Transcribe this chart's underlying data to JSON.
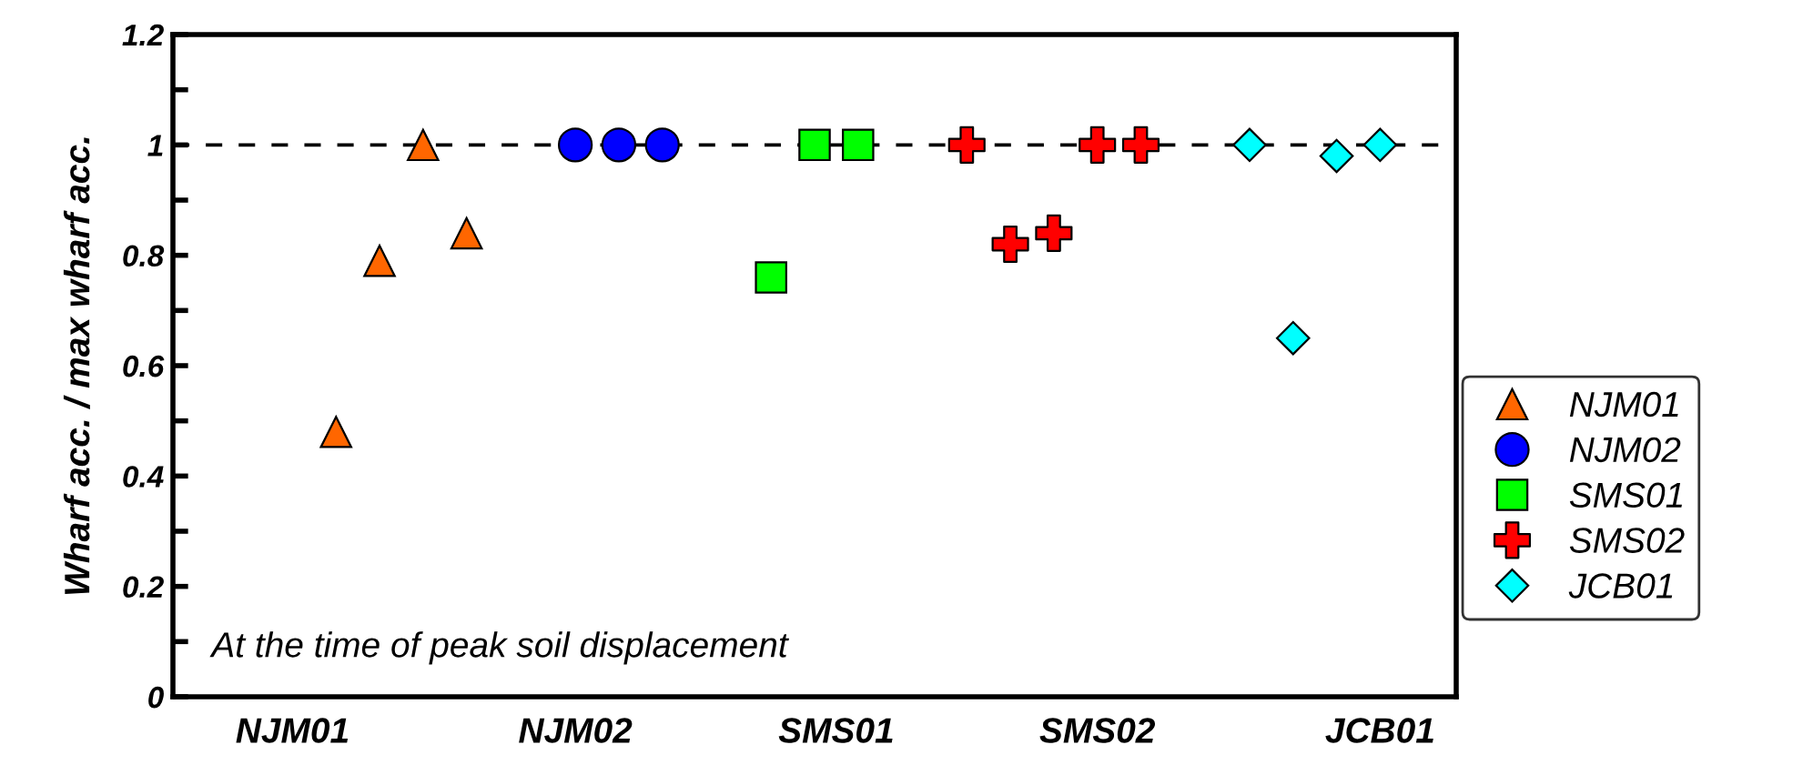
{
  "chart_data": {
    "type": "scatter",
    "ylabel": "Wharf acc. / max wharf acc.",
    "categories": [
      null,
      null,
      null,
      null,
      null,
      "NJM01",
      null,
      null,
      null,
      null,
      null,
      null,
      null,
      null,
      null,
      null,
      null,
      null,
      "NJM02",
      null,
      null,
      null,
      null,
      null,
      null,
      null,
      null,
      null,
      null,
      null,
      "SMS01",
      null,
      null,
      null,
      null,
      null,
      null,
      null,
      null,
      null,
      null,
      null,
      "SMS02",
      null,
      null,
      null,
      null,
      null,
      null,
      null,
      null,
      null,
      null,
      null,
      null,
      "JCB01",
      null,
      null,
      null
    ],
    "ylim": [
      0,
      1.2
    ],
    "yticks": [
      0,
      {
        "value": 0.1,
        "label": null
      },
      0.2,
      {
        "value": 0.3,
        "label": null
      },
      0.4,
      {
        "value": 0.5,
        "label": null
      },
      0.6,
      {
        "value": 0.7,
        "label": null
      },
      0.8,
      {
        "value": 0.9,
        "label": null
      },
      1,
      {
        "value": 1.1,
        "label": null
      },
      1.2
    ],
    "series": [
      {
        "name": "NJM01",
        "color": "#ff6600",
        "marker": "triangle",
        "values": [
          null,
          null,
          null,
          null,
          null,
          null,
          null,
          0.48,
          null,
          0.79,
          null,
          1.0,
          null,
          0.84,
          null,
          null,
          null,
          null,
          null,
          null,
          null,
          null,
          null,
          null,
          null,
          null,
          null,
          null,
          null,
          null,
          null,
          null,
          null,
          null,
          null,
          null,
          null,
          null,
          null,
          null,
          null,
          null,
          null,
          null,
          null,
          null,
          null,
          null,
          null,
          null,
          null,
          null,
          null,
          null,
          null,
          null,
          null,
          null,
          null
        ]
      },
      {
        "name": "NJM02",
        "color": "#0000ff",
        "marker": "circle",
        "values": [
          null,
          null,
          null,
          null,
          null,
          null,
          null,
          null,
          null,
          null,
          null,
          null,
          null,
          null,
          null,
          null,
          null,
          null,
          1.0,
          null,
          1.0,
          null,
          1.0,
          null,
          null,
          null,
          null,
          null,
          null,
          null,
          null,
          null,
          null,
          null,
          null,
          null,
          null,
          null,
          null,
          null,
          null,
          null,
          null,
          null,
          null,
          null,
          null,
          null,
          null,
          null,
          null,
          null,
          null,
          null,
          null,
          null,
          null,
          null,
          null
        ]
      },
      {
        "name": "SMS01",
        "color": "#00ff00",
        "marker": "square",
        "values": [
          null,
          null,
          null,
          null,
          null,
          null,
          null,
          null,
          null,
          null,
          null,
          null,
          null,
          null,
          null,
          null,
          null,
          null,
          null,
          null,
          null,
          null,
          null,
          null,
          null,
          null,
          null,
          0.76,
          null,
          1.0,
          null,
          1.0,
          null,
          null,
          null,
          null,
          null,
          null,
          null,
          null,
          null,
          null,
          null,
          null,
          null,
          null,
          null,
          null,
          null,
          null,
          null,
          null,
          null,
          null,
          null,
          null,
          null,
          null,
          null
        ]
      },
      {
        "name": "SMS02",
        "color": "#ff0000",
        "marker": "cross",
        "values": [
          null,
          null,
          null,
          null,
          null,
          null,
          null,
          null,
          null,
          null,
          null,
          null,
          null,
          null,
          null,
          null,
          null,
          null,
          null,
          null,
          null,
          null,
          null,
          null,
          null,
          null,
          null,
          null,
          null,
          null,
          null,
          null,
          null,
          null,
          null,
          null,
          1.0,
          null,
          0.82,
          null,
          0.84,
          null,
          1.0,
          null,
          1.0,
          null,
          null,
          null,
          null,
          null,
          null,
          null,
          null,
          null,
          null,
          null,
          null,
          null,
          null
        ]
      },
      {
        "name": "JCB01",
        "color": "#00ffff",
        "marker": "diamond",
        "values": [
          null,
          null,
          null,
          null,
          null,
          null,
          null,
          null,
          null,
          null,
          null,
          null,
          null,
          null,
          null,
          null,
          null,
          null,
          null,
          null,
          null,
          null,
          null,
          null,
          null,
          null,
          null,
          null,
          null,
          null,
          null,
          null,
          null,
          null,
          null,
          null,
          null,
          null,
          null,
          null,
          null,
          null,
          null,
          null,
          null,
          null,
          null,
          null,
          null,
          1.0,
          null,
          0.65,
          null,
          0.98,
          null,
          1.0,
          null,
          null,
          null
        ]
      }
    ],
    "ref_lines": [
      {
        "axis": "y",
        "value": 1,
        "color": "#000000",
        "line_style": "dashed"
      }
    ],
    "annotations": [
      "At the time of peak soil displacement"
    ],
    "legend": "right",
    "grid": false
  }
}
